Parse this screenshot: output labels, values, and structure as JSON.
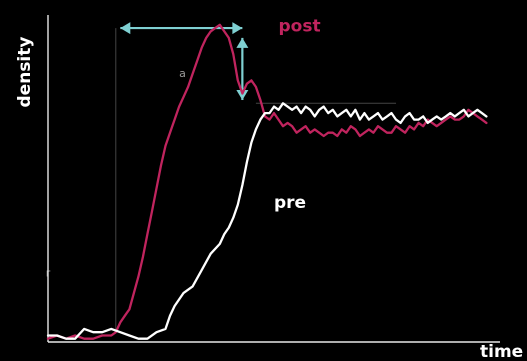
{
  "chart_data": {
    "type": "line",
    "xlabel": "time",
    "ylabel": "density",
    "xlim": [
      0,
      100
    ],
    "ylim": [
      0,
      100
    ],
    "grid": false,
    "annotations": [
      {
        "name": "horizontal-arrow",
        "kind": "double-arrow",
        "from": [
          16,
          96
        ],
        "to": [
          43,
          96
        ],
        "color": "#7fd0d2"
      },
      {
        "name": "vertical-arrow",
        "kind": "double-arrow",
        "from": [
          43,
          93
        ],
        "to": [
          43,
          74
        ],
        "color": "#7fd0d2"
      },
      {
        "name": "onset-line",
        "kind": "vline",
        "x": 15,
        "y0": 3,
        "y1": 96,
        "color": "#444444"
      },
      {
        "name": "plateau-line",
        "kind": "hline",
        "y": 73,
        "x0": 46,
        "x1": 77,
        "color": "#444444"
      },
      {
        "name": "label-a",
        "kind": "text",
        "text": "a",
        "x": 29,
        "y": 81
      },
      {
        "name": "small-tick",
        "kind": "text",
        "text": "r",
        "x": -0.5,
        "y": 20
      }
    ],
    "series": [
      {
        "name": "post",
        "color": "#c0245e",
        "label_at": [
          51,
          95
        ],
        "x": [
          0,
          2,
          4,
          6,
          8,
          10,
          12,
          14,
          15,
          16,
          17,
          18,
          19,
          20,
          21,
          22,
          23,
          24,
          25,
          26,
          27,
          28,
          29,
          30,
          31,
          32,
          33,
          34,
          35,
          36,
          37,
          38,
          39,
          40,
          41,
          42,
          43,
          44,
          45,
          46,
          47,
          48,
          49,
          50,
          51,
          52,
          53,
          54,
          55,
          56,
          57,
          58,
          59,
          60,
          61,
          62,
          63,
          64,
          65,
          66,
          67,
          68,
          69,
          70,
          71,
          72,
          73,
          74,
          75,
          76,
          77,
          78,
          79,
          80,
          81,
          82,
          83,
          84,
          85,
          86,
          87,
          88,
          89,
          90,
          91,
          92,
          93,
          94,
          95,
          96,
          97
        ],
        "y": [
          1,
          2,
          1,
          2,
          1,
          1,
          2,
          2,
          3,
          6,
          8,
          10,
          15,
          20,
          26,
          33,
          40,
          47,
          54,
          60,
          64,
          68,
          72,
          75,
          78,
          82,
          86,
          90,
          93,
          95,
          96,
          97,
          95,
          93,
          88,
          80,
          76,
          79,
          80,
          78,
          74,
          69,
          68,
          70,
          68,
          66,
          67,
          66,
          64,
          65,
          66,
          64,
          65,
          64,
          63,
          64,
          64,
          63,
          65,
          64,
          66,
          65,
          63,
          64,
          65,
          64,
          66,
          65,
          64,
          64,
          66,
          65,
          64,
          66,
          65,
          67,
          66,
          68,
          67,
          66,
          67,
          68,
          69,
          68,
          68,
          69,
          71,
          70,
          69,
          68,
          67
        ]
      },
      {
        "name": "pre",
        "color": "#ffffff",
        "label_at": [
          50,
          41
        ],
        "x": [
          0,
          2,
          4,
          6,
          8,
          10,
          12,
          14,
          16,
          18,
          20,
          22,
          24,
          26,
          27,
          28,
          30,
          32,
          34,
          36,
          38,
          39,
          40,
          41,
          42,
          43,
          44,
          45,
          46,
          47,
          48,
          49,
          50,
          51,
          52,
          53,
          54,
          55,
          56,
          57,
          58,
          59,
          60,
          61,
          62,
          63,
          64,
          65,
          66,
          67,
          68,
          69,
          70,
          71,
          72,
          73,
          74,
          75,
          76,
          77,
          78,
          79,
          80,
          81,
          82,
          83,
          84,
          85,
          86,
          87,
          88,
          89,
          90,
          91,
          92,
          93,
          94,
          95,
          96,
          97
        ],
        "y": [
          2,
          2,
          1,
          1,
          4,
          3,
          3,
          4,
          3,
          2,
          1,
          1,
          3,
          4,
          8,
          11,
          15,
          17,
          22,
          27,
          30,
          33,
          35,
          38,
          42,
          48,
          55,
          61,
          65,
          68,
          70,
          70,
          72,
          71,
          73,
          72,
          71,
          72,
          70,
          72,
          71,
          69,
          71,
          72,
          70,
          71,
          69,
          70,
          71,
          69,
          71,
          68,
          70,
          68,
          69,
          70,
          68,
          69,
          70,
          68,
          67,
          69,
          70,
          68,
          68,
          69,
          67,
          68,
          69,
          68,
          69,
          70,
          69,
          70,
          71,
          69,
          70,
          71,
          70,
          69
        ]
      }
    ]
  }
}
